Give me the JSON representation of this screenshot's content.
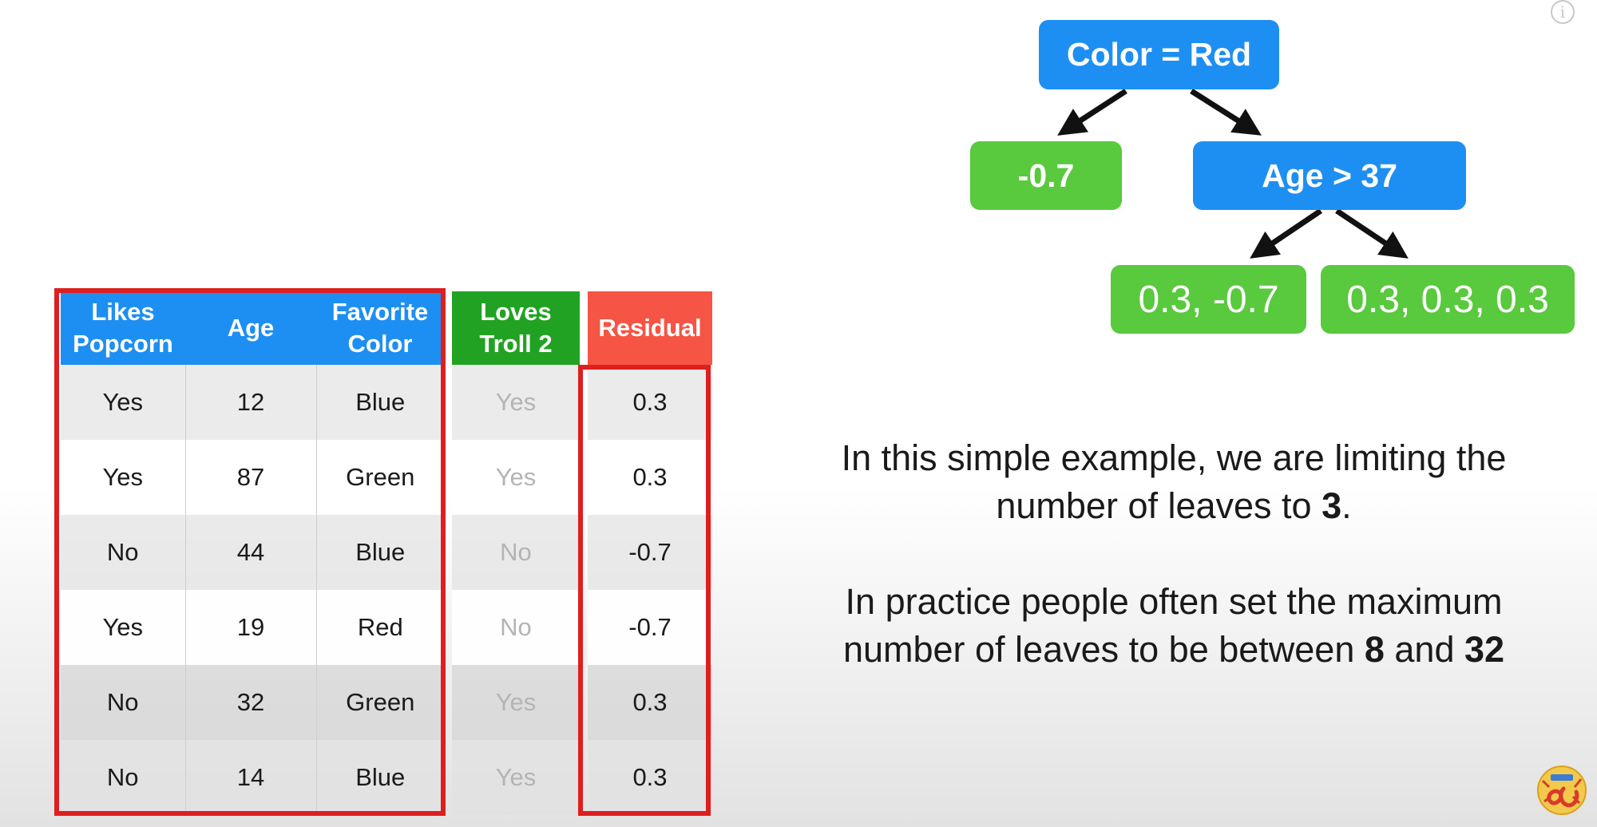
{
  "table": {
    "headers": {
      "likes_popcorn_line1": "Likes",
      "likes_popcorn_line2": "Popcorn",
      "age": "Age",
      "favorite_color_line1": "Favorite",
      "favorite_color_line2": "Color",
      "loves_troll_line1": "Loves",
      "loves_troll_line2": "Troll 2",
      "residual": "Residual"
    },
    "rows": [
      {
        "likes_popcorn": "Yes",
        "age": "12",
        "favorite_color": "Blue",
        "loves_troll": "Yes",
        "residual": "0.3"
      },
      {
        "likes_popcorn": "Yes",
        "age": "87",
        "favorite_color": "Green",
        "loves_troll": "Yes",
        "residual": "0.3"
      },
      {
        "likes_popcorn": "No",
        "age": "44",
        "favorite_color": "Blue",
        "loves_troll": "No",
        "residual": "-0.7"
      },
      {
        "likes_popcorn": "Yes",
        "age": "19",
        "favorite_color": "Red",
        "loves_troll": "No",
        "residual": "-0.7"
      },
      {
        "likes_popcorn": "No",
        "age": "32",
        "favorite_color": "Green",
        "loves_troll": "Yes",
        "residual": "0.3"
      },
      {
        "likes_popcorn": "No",
        "age": "14",
        "favorite_color": "Blue",
        "loves_troll": "Yes",
        "residual": "0.3"
      }
    ]
  },
  "tree": {
    "root": "Color = Red",
    "left_leaf": "-0.7",
    "inner_node": "Age > 37",
    "leaf_low": "0.3, -0.7",
    "leaf_high": "0.3, 0.3, 0.3"
  },
  "explanation": {
    "p1_text": "In this simple example, we are limiting the number of leaves to ",
    "p1_bold": "3",
    "p1_end": ".",
    "p2_text": "In practice people often set the maximum number of leaves to be between ",
    "p2_bold1": "8",
    "p2_mid": " and ",
    "p2_bold2": "32"
  },
  "decorations": {
    "info_icon": "info-icon",
    "logo_icon": "statquest-logo-icon",
    "info_glyph": "i"
  },
  "colors": {
    "header_blue": "#1e8ff2",
    "header_green": "#22a223",
    "header_red": "#f65444",
    "leaf_green": "#59c93e",
    "highlight_red": "#dd1f1f"
  }
}
